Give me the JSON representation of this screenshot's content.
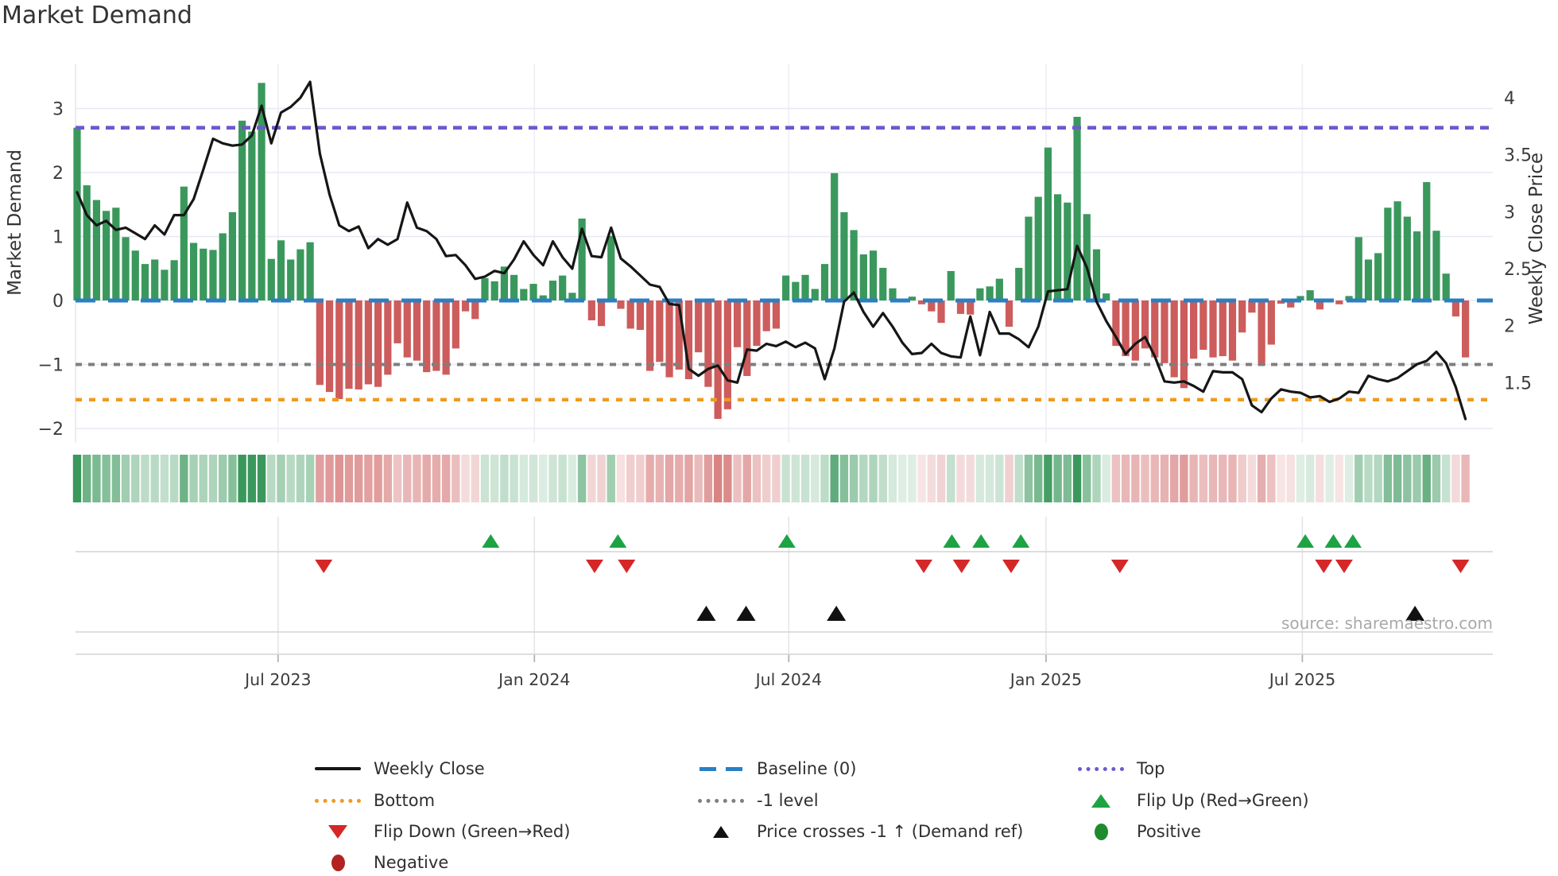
{
  "title": "Market Demand",
  "source": "source: sharemaestro.com",
  "colors": {
    "positive_bar": "#3a985c",
    "negative_bar": "#cd5c5c",
    "price_line": "#161616",
    "baseline": "#2b7fc2",
    "top_line": "#6a5acd",
    "bottom_line": "#ef9a21",
    "minus_one_line": "#7f7f7f",
    "flip_up": "#1da343",
    "flip_down": "#d62728",
    "price_cross": "#111111",
    "positive_dot": "#1e8b2e",
    "negative_dot": "#b22222",
    "grid": "#e8e8f2",
    "panel_line": "#d9d9d9",
    "tick_mark": "#b3b3b3",
    "tick_text": "#3c3c3c"
  },
  "chart_data": {
    "type": "combo_bar_line",
    "title": "Market Demand",
    "ylabel_left": "Market Demand",
    "ylabel_right": "Weekly Close Price",
    "grid": true,
    "legend_position": "bottom",
    "x_tick_labels": [
      "Jul 2023",
      "Jan 2024",
      "Jul 2024",
      "Jan 2025",
      "Jul 2025"
    ],
    "x_tick_weeks": [
      20.7,
      47.1,
      73.3,
      99.8,
      126.2
    ],
    "n_weeks": 144,
    "demand_axis": {
      "tick_labels": [
        "3",
        "2",
        "1",
        "0",
        "−1",
        "−2"
      ],
      "tick_values": [
        3,
        2,
        1,
        0,
        -1,
        -2
      ],
      "range": [
        -2.22,
        3.7
      ]
    },
    "price_axis": {
      "tick_labels": [
        "4",
        "3.5",
        "3",
        "2.5",
        "2",
        "1.5"
      ],
      "tick_values": [
        4,
        3.5,
        3,
        2.5,
        2,
        1.5
      ],
      "range": [
        0.97,
        4.3
      ]
    },
    "ref_lines": {
      "top": 2.7,
      "baseline": 0,
      "minus_one": -1,
      "bottom": -1.55
    },
    "series": [
      {
        "name": "Market Demand",
        "type": "bar",
        "axis": "left",
        "values": [
          2.7,
          1.8,
          1.57,
          1.4,
          1.45,
          0.99,
          0.78,
          0.57,
          0.64,
          0.48,
          0.63,
          1.78,
          0.9,
          0.81,
          0.79,
          1.05,
          1.38,
          2.81,
          2.64,
          3.4,
          0.65,
          0.94,
          0.64,
          0.8,
          0.91,
          -1.32,
          -1.43,
          -1.54,
          -1.38,
          -1.39,
          -1.31,
          -1.35,
          -1.16,
          -0.67,
          -0.89,
          -0.94,
          -1.12,
          -1.1,
          -1.16,
          -0.75,
          -0.17,
          -0.29,
          0.35,
          0.3,
          0.53,
          0.4,
          0.18,
          0.26,
          0.08,
          0.31,
          0.39,
          0.12,
          1.28,
          -0.31,
          -0.4,
          1.01,
          -0.13,
          -0.44,
          -0.46,
          -1.1,
          -0.96,
          -1.2,
          -1.08,
          -1.23,
          -0.81,
          -1.35,
          -1.85,
          -1.7,
          -0.73,
          -1.18,
          -0.71,
          -0.48,
          -0.44,
          0.39,
          0.29,
          0.4,
          0.18,
          0.57,
          1.99,
          1.38,
          1.1,
          0.72,
          0.78,
          0.51,
          0.19,
          0.03,
          0.06,
          -0.06,
          -0.17,
          -0.35,
          0.46,
          -0.21,
          -0.22,
          0.19,
          0.22,
          0.34,
          -0.41,
          0.51,
          1.31,
          1.62,
          2.39,
          1.66,
          1.53,
          2.87,
          1.35,
          0.8,
          0.11,
          -0.71,
          -0.87,
          -0.94,
          -0.75,
          -0.89,
          -0.98,
          -1.2,
          -1.37,
          -0.91,
          -0.77,
          -0.89,
          -0.87,
          -0.94,
          -0.5,
          -0.19,
          -1.02,
          -0.69,
          -0.05,
          -0.11,
          0.07,
          0.16,
          -0.14,
          0.02,
          -0.06,
          0.07,
          0.99,
          0.64,
          0.74,
          1.45,
          1.55,
          1.31,
          1.08,
          1.85,
          1.09,
          0.42,
          -0.25,
          -0.89
        ]
      },
      {
        "name": "Weekly Close",
        "type": "line",
        "axis": "right",
        "values": [
          3.17,
          2.97,
          2.88,
          2.92,
          2.84,
          2.86,
          2.81,
          2.76,
          2.88,
          2.8,
          2.97,
          2.97,
          3.11,
          3.37,
          3.64,
          3.6,
          3.58,
          3.59,
          3.67,
          3.93,
          3.6,
          3.87,
          3.92,
          4.0,
          4.14,
          3.51,
          3.15,
          2.88,
          2.83,
          2.87,
          2.68,
          2.76,
          2.71,
          2.76,
          3.08,
          2.86,
          2.83,
          2.76,
          2.61,
          2.62,
          2.53,
          2.41,
          2.43,
          2.48,
          2.46,
          2.58,
          2.74,
          2.62,
          2.53,
          2.74,
          2.6,
          2.5,
          2.85,
          2.61,
          2.6,
          2.86,
          2.59,
          2.52,
          2.44,
          2.36,
          2.34,
          2.19,
          2.18,
          1.62,
          1.56,
          1.62,
          1.65,
          1.52,
          1.5,
          1.79,
          1.78,
          1.84,
          1.82,
          1.86,
          1.81,
          1.85,
          1.8,
          1.53,
          1.8,
          2.21,
          2.29,
          2.12,
          1.99,
          2.11,
          1.99,
          1.85,
          1.75,
          1.76,
          1.84,
          1.76,
          1.73,
          1.72,
          2.08,
          1.74,
          2.12,
          1.93,
          1.93,
          1.88,
          1.81,
          1.99,
          2.3,
          2.31,
          2.32,
          2.7,
          2.51,
          2.21,
          2.04,
          1.9,
          1.75,
          1.84,
          1.9,
          1.73,
          1.51,
          1.5,
          1.51,
          1.47,
          1.42,
          1.6,
          1.59,
          1.59,
          1.53,
          1.3,
          1.24,
          1.36,
          1.44,
          1.42,
          1.41,
          1.37,
          1.38,
          1.33,
          1.36,
          1.42,
          1.41,
          1.56,
          1.53,
          1.51,
          1.54,
          1.6,
          1.66,
          1.69,
          1.77,
          1.67,
          1.46,
          1.18
        ]
      }
    ],
    "heatmap": {
      "note": "strip shading derived from Market Demand bar values: green for positive, red for negative, opacity scales with magnitude"
    },
    "markers": {
      "flip_up_weeks": [
        42.6,
        55.7,
        73.1,
        90.1,
        93.1,
        97.2,
        126.5,
        129.4,
        131.4
      ],
      "flip_down_weeks": [
        25.4,
        53.3,
        56.6,
        87.2,
        91.1,
        96.2,
        107.4,
        128.4,
        130.5,
        142.5
      ],
      "price_cross_weeks": [
        64.8,
        68.9,
        78.2,
        137.8
      ]
    }
  },
  "legend": {
    "items": [
      {
        "label": "Weekly Close",
        "symbol": "black-line"
      },
      {
        "label": "Baseline (0)",
        "symbol": "blue-dashes"
      },
      {
        "label": "Top",
        "symbol": "purple-dots"
      },
      {
        "label": "Bottom",
        "symbol": "orange-dots"
      },
      {
        "label": "-1 level",
        "symbol": "gray-dots"
      },
      {
        "label": "Flip Up (Red→Green)",
        "symbol": "green-triangle-up"
      },
      {
        "label": "Flip Down (Green→Red)",
        "symbol": "red-triangle-down"
      },
      {
        "label": "Price crosses -1 ↑ (Demand ref)",
        "symbol": "black-triangle-up"
      },
      {
        "label": "Positive",
        "symbol": "green-circle"
      },
      {
        "label": "Negative",
        "symbol": "dark-red-circle"
      }
    ]
  }
}
